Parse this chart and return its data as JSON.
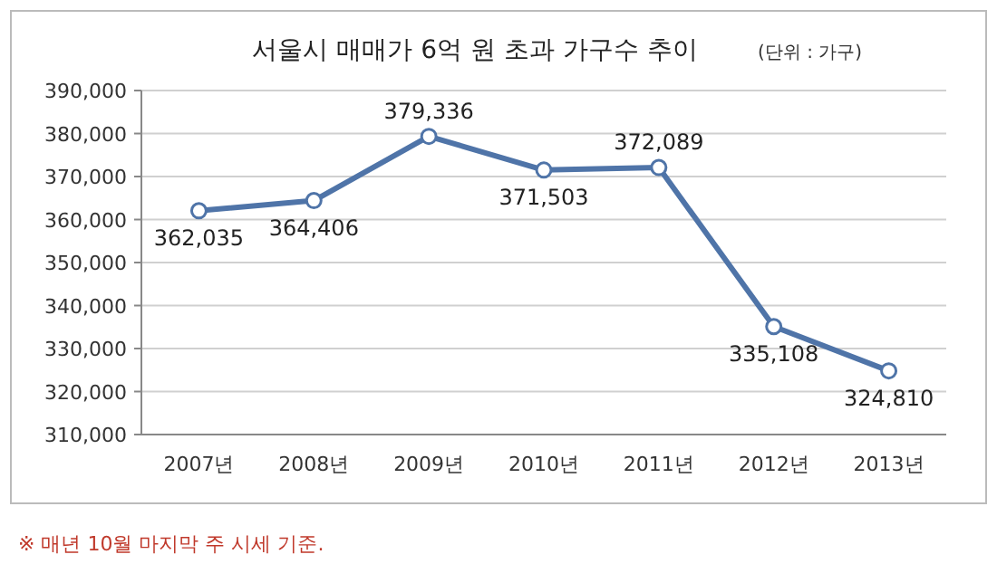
{
  "chart_data": {
    "type": "line",
    "title": "서울시 매매가 6억 원 초과 가구수 추이",
    "subtitle": "(단위 : 가구)",
    "categories": [
      "2007년",
      "2008년",
      "2009년",
      "2010년",
      "2011년",
      "2012년",
      "2013년"
    ],
    "series": [
      {
        "color": "#4f74a8",
        "values": [
          362035,
          364406,
          379336,
          371503,
          372089,
          335108,
          324810
        ],
        "value_labels": [
          "362,035",
          "364,406",
          "379,336",
          "371,503",
          "372,089",
          "335,108",
          "324,810"
        ]
      }
    ],
    "ylim": [
      310000,
      390000
    ],
    "yticks": [
      {
        "value": 310000,
        "label": "310,000"
      },
      {
        "value": 320000,
        "label": "320,000"
      },
      {
        "value": 330000,
        "label": "330,000"
      },
      {
        "value": 340000,
        "label": "340,000"
      },
      {
        "value": 350000,
        "label": "350,000"
      },
      {
        "value": 360000,
        "label": "360,000"
      },
      {
        "value": 370000,
        "label": "370,000"
      },
      {
        "value": 380000,
        "label": "380,000"
      },
      {
        "value": 390000,
        "label": "390,000"
      }
    ],
    "grid": "y",
    "marker": "circle",
    "line_style": "solid",
    "annotations": [
      "※ 매년 10월 마지막 주 시세 기준."
    ]
  }
}
